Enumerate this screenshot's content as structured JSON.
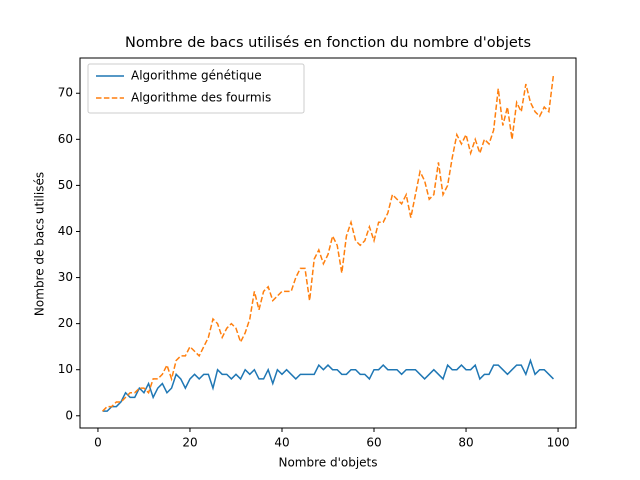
{
  "chart_data": {
    "type": "line",
    "title": "Nombre de bacs utilisés en fonction du nombre d'objets",
    "x_label": "Nombre d'objets",
    "y_label": "Nombre de bacs utilisés",
    "x": [
      1,
      2,
      3,
      4,
      5,
      6,
      7,
      8,
      9,
      10,
      11,
      12,
      13,
      14,
      15,
      16,
      17,
      18,
      19,
      20,
      21,
      22,
      23,
      24,
      25,
      26,
      27,
      28,
      29,
      30,
      31,
      32,
      33,
      34,
      35,
      36,
      37,
      38,
      39,
      40,
      41,
      42,
      43,
      44,
      45,
      46,
      47,
      48,
      49,
      50,
      51,
      52,
      53,
      54,
      55,
      56,
      57,
      58,
      59,
      60,
      61,
      62,
      63,
      64,
      65,
      66,
      67,
      68,
      69,
      70,
      71,
      72,
      73,
      74,
      75,
      76,
      77,
      78,
      79,
      80,
      81,
      82,
      83,
      84,
      85,
      86,
      87,
      88,
      89,
      90,
      91,
      92,
      93,
      94,
      95,
      96,
      97,
      98,
      99
    ],
    "series": [
      {
        "name": "Algorithme génétique",
        "color": "#1f77b4",
        "dash": "solid",
        "values": [
          1,
          1,
          2,
          2,
          3,
          5,
          4,
          4,
          6,
          5,
          7,
          4,
          6,
          7,
          5,
          6,
          9,
          8,
          6,
          8,
          9,
          8,
          9,
          9,
          6,
          10,
          9,
          9,
          8,
          9,
          8,
          10,
          9,
          10,
          8,
          8,
          10,
          7,
          10,
          9,
          10,
          9,
          8,
          9,
          9,
          9,
          9,
          11,
          10,
          11,
          10,
          10,
          9,
          9,
          10,
          10,
          9,
          9,
          8,
          10,
          10,
          11,
          10,
          10,
          10,
          9,
          10,
          10,
          10,
          9,
          8,
          9,
          10,
          9,
          8,
          11,
          10,
          10,
          11,
          10,
          10,
          11,
          8,
          9,
          9,
          11,
          11,
          10,
          9,
          10,
          11,
          11,
          9,
          12,
          9,
          10,
          10,
          9,
          8
        ]
      },
      {
        "name": "Algorithme des fourmis",
        "color": "#ff7f0e",
        "dash": "dashed",
        "values": [
          1,
          2,
          2,
          3,
          3,
          4,
          5,
          5,
          6,
          6,
          5,
          8,
          8,
          9,
          11,
          8,
          12,
          13,
          13,
          15,
          14,
          13,
          15,
          17,
          21,
          20,
          17,
          19,
          20,
          19,
          16,
          18,
          21,
          27,
          23,
          27,
          28,
          25,
          26,
          27,
          27,
          27,
          30,
          32,
          32,
          25,
          34,
          36,
          33,
          35,
          39,
          37,
          31,
          39,
          42,
          38,
          37,
          38,
          41,
          38,
          42,
          42,
          44,
          48,
          47,
          46,
          48,
          43,
          48,
          53,
          51,
          47,
          48,
          55,
          48,
          50,
          56,
          61,
          59,
          61,
          57,
          60,
          57,
          60,
          59,
          62,
          71,
          63,
          67,
          60,
          68,
          66,
          72,
          68,
          66,
          65,
          67,
          66,
          74
        ]
      }
    ],
    "xlim": [
      -3.9,
      103.9
    ],
    "xticks": [
      0,
      20,
      40,
      60,
      80,
      100
    ],
    "ylim": [
      -2.65,
      77.65
    ],
    "yticks": [
      0,
      10,
      20,
      30,
      40,
      50,
      60,
      70
    ],
    "legend": "upper left"
  }
}
